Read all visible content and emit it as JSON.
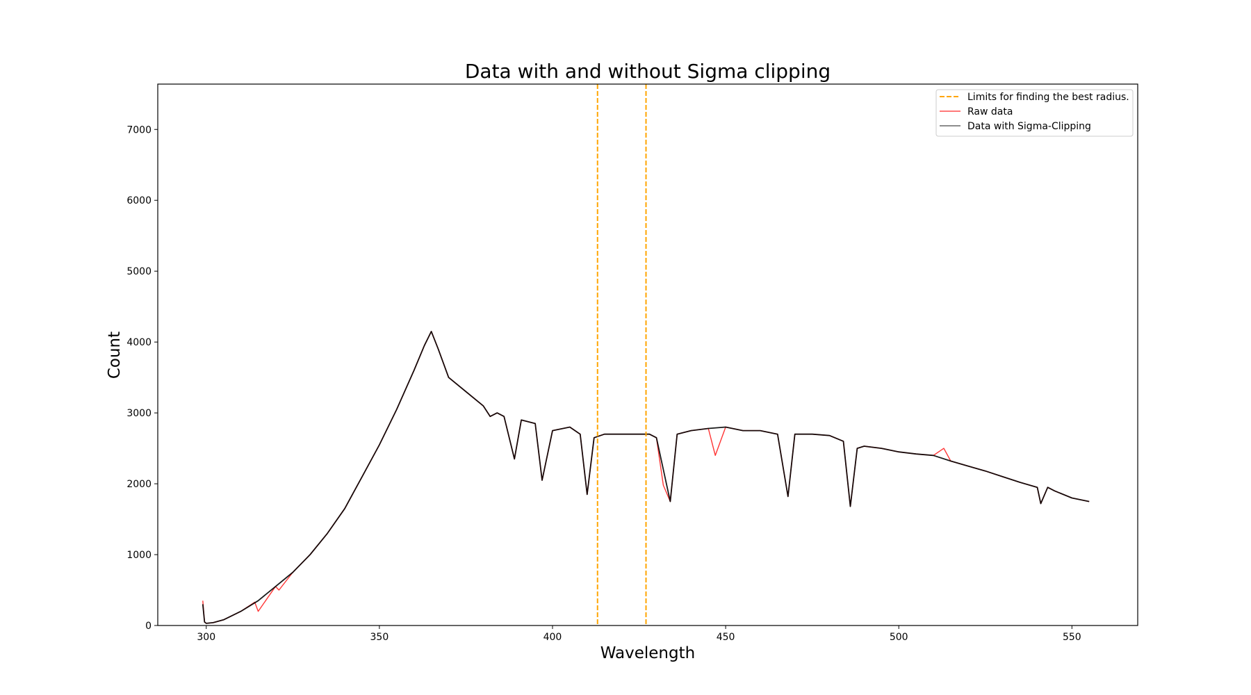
{
  "chart_data": {
    "type": "line",
    "title": "Data with and without Sigma clipping",
    "xlabel": "Wavelength",
    "ylabel": "Count",
    "xlim": [
      286,
      569
    ],
    "ylim": [
      0,
      7640
    ],
    "xticks": [
      300,
      350,
      400,
      450,
      500,
      550
    ],
    "yticks": [
      0,
      1000,
      2000,
      3000,
      4000,
      5000,
      6000,
      7000
    ],
    "grid": false,
    "legend": {
      "placement": "top-right"
    },
    "vlines": {
      "name": "Limits for finding the best radius.",
      "x": [
        413,
        427
      ],
      "color": "#ffa500",
      "style": "dashed"
    },
    "series": [
      {
        "name": "Raw data",
        "color": "#ff0000",
        "x": [
          299,
          299.5,
          300,
          302,
          305,
          310,
          314,
          315,
          320,
          321,
          325,
          330,
          335,
          340,
          345,
          350,
          355,
          360,
          363,
          365,
          367,
          370,
          375,
          380,
          382,
          384,
          386,
          389,
          391,
          395,
          397,
          400,
          405,
          408,
          410,
          412,
          415,
          420,
          425,
          428,
          430,
          432,
          434,
          436,
          440,
          445,
          447,
          450,
          455,
          460,
          465,
          468,
          470,
          475,
          480,
          484,
          486,
          488,
          490,
          495,
          500,
          505,
          510,
          513,
          515,
          520,
          525,
          530,
          535,
          540,
          541,
          543,
          545,
          550,
          555
        ],
        "y": [
          350,
          50,
          30,
          40,
          80,
          200,
          330,
          200,
          550,
          500,
          750,
          1000,
          1300,
          1650,
          2100,
          2550,
          3050,
          3600,
          3950,
          4150,
          3900,
          3500,
          3300,
          3100,
          2950,
          3000,
          2950,
          2350,
          2900,
          2850,
          2050,
          2750,
          2800,
          2700,
          1850,
          2650,
          2700,
          2700,
          2700,
          2700,
          2650,
          1980,
          1750,
          2700,
          2750,
          2780,
          2400,
          2800,
          2750,
          2750,
          2700,
          1820,
          2700,
          2700,
          2680,
          2600,
          1680,
          2500,
          2530,
          2500,
          2450,
          2420,
          2400,
          2500,
          2320,
          2250,
          2180,
          2100,
          2020,
          1950,
          1720,
          1950,
          1900,
          1800,
          1750
        ]
      },
      {
        "name": "Data with Sigma-Clipping",
        "color": "#000000",
        "x": [
          299,
          299.5,
          300,
          302,
          305,
          310,
          315,
          320,
          325,
          330,
          335,
          340,
          345,
          350,
          355,
          360,
          363,
          365,
          367,
          370,
          375,
          380,
          382,
          384,
          386,
          389,
          391,
          395,
          397,
          400,
          405,
          408,
          410,
          412,
          415,
          420,
          425,
          428,
          430,
          434,
          436,
          440,
          445,
          450,
          455,
          460,
          465,
          468,
          470,
          475,
          480,
          484,
          486,
          488,
          490,
          495,
          500,
          505,
          510,
          515,
          520,
          525,
          530,
          535,
          540,
          541,
          543,
          545,
          550,
          555
        ],
        "y": [
          300,
          50,
          30,
          40,
          80,
          200,
          350,
          550,
          750,
          1000,
          1300,
          1650,
          2100,
          2550,
          3050,
          3600,
          3950,
          4150,
          3900,
          3500,
          3300,
          3100,
          2950,
          3000,
          2950,
          2350,
          2900,
          2850,
          2050,
          2750,
          2800,
          2700,
          1850,
          2650,
          2700,
          2700,
          2700,
          2700,
          2650,
          1750,
          2700,
          2750,
          2780,
          2800,
          2750,
          2750,
          2700,
          1820,
          2700,
          2700,
          2680,
          2600,
          1680,
          2500,
          2530,
          2500,
          2450,
          2420,
          2400,
          2320,
          2250,
          2180,
          2100,
          2020,
          1950,
          1720,
          1950,
          1900,
          1800,
          1750
        ]
      }
    ]
  }
}
